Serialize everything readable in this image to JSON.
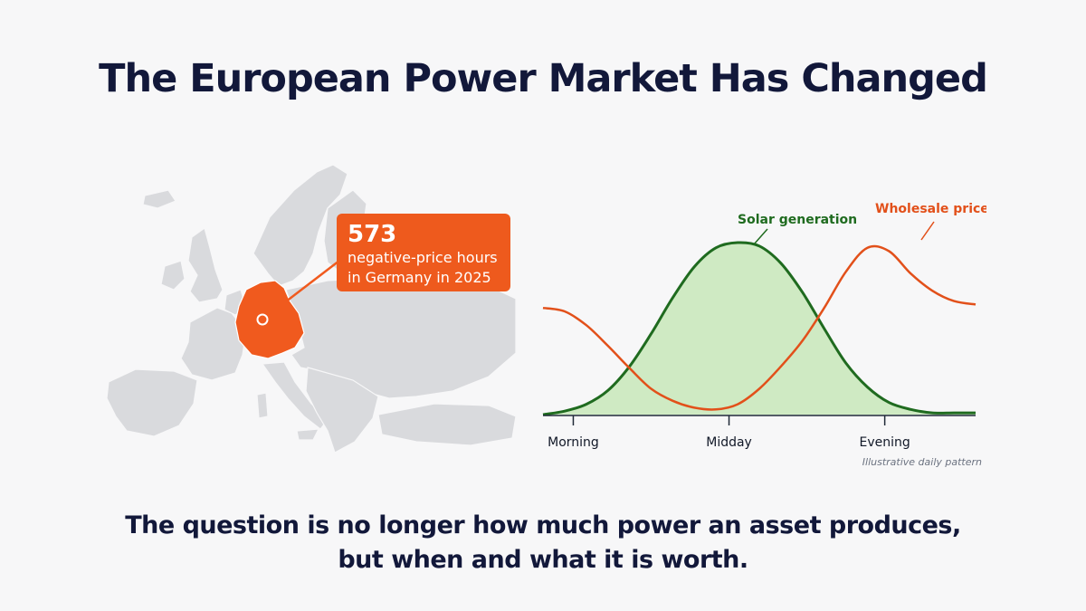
{
  "title": "The European Power Market Has Changed",
  "callout": {
    "number": "573",
    "line1": "negative-price hours",
    "line2": "in Germany in 2025"
  },
  "subtitle": {
    "line1": "The question is no longer how much power an asset produces,",
    "line2": "but when and what it is worth."
  },
  "colors": {
    "title": "#12183a",
    "map_land": "#d9dadd",
    "map_highlight": "#f05a1e",
    "solar_line": "#1f6b1f",
    "solar_fill": "#cfeac3",
    "price_line": "#e2501a"
  },
  "chart_data": {
    "type": "line",
    "x_ticks": [
      "Morning",
      "Midday",
      "Evening"
    ],
    "note": "Illustrative daily pattern",
    "series": [
      {
        "name": "Solar generation",
        "color": "#1f6b1f",
        "fill": true,
        "x": [
          0,
          0.05,
          0.1,
          0.15,
          0.2,
          0.25,
          0.3,
          0.35,
          0.4,
          0.45,
          0.5,
          0.55,
          0.6,
          0.65,
          0.7,
          0.75,
          0.8,
          0.85,
          0.9,
          0.95,
          1.0
        ],
        "values": [
          0.0,
          0.02,
          0.06,
          0.14,
          0.28,
          0.47,
          0.68,
          0.86,
          0.97,
          1.0,
          0.98,
          0.88,
          0.71,
          0.5,
          0.3,
          0.16,
          0.07,
          0.03,
          0.01,
          0.01,
          0.01
        ]
      },
      {
        "name": "Wholesale price",
        "color": "#e2501a",
        "fill": false,
        "x": [
          0,
          0.05,
          0.1,
          0.15,
          0.2,
          0.25,
          0.3,
          0.35,
          0.4,
          0.45,
          0.5,
          0.55,
          0.6,
          0.65,
          0.7,
          0.75,
          0.8,
          0.85,
          0.9,
          0.95,
          1.0
        ],
        "values": [
          0.62,
          0.6,
          0.52,
          0.4,
          0.27,
          0.15,
          0.08,
          0.04,
          0.03,
          0.06,
          0.15,
          0.28,
          0.43,
          0.62,
          0.83,
          0.97,
          0.95,
          0.82,
          0.72,
          0.66,
          0.64
        ]
      }
    ]
  }
}
